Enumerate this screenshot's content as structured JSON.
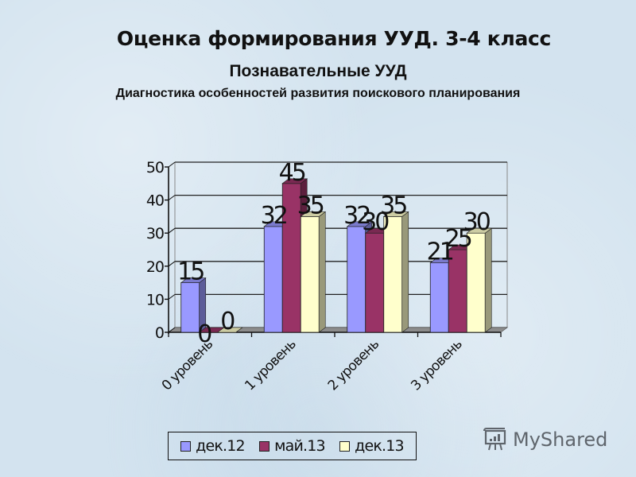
{
  "slide": {
    "title": "Оценка формирования УУД. 3-4 класс",
    "subtitle": "Познавательные УУД",
    "caption": "Диагностика особенностей развития поискового планирования"
  },
  "watermark": {
    "text": "MyShared",
    "icon": "presentation-board-icon"
  },
  "colors": {
    "background": "#d3e3ef",
    "series": [
      "#9999ff",
      "#993366",
      "#ffffcc"
    ]
  },
  "legend": {
    "items": [
      {
        "label": "дек.12",
        "color": "#9999ff"
      },
      {
        "label": "май.13",
        "color": "#993366"
      },
      {
        "label": "дек.13",
        "color": "#ffffcc"
      }
    ]
  },
  "chart_data": {
    "type": "bar",
    "style": "3d-clustered-column",
    "title": "Диагностика особенностей развития поискового планирования",
    "xlabel": "",
    "ylabel": "",
    "categories": [
      "0 уровень",
      "1 уровень",
      "2 уровень",
      "3 уровень"
    ],
    "series": [
      {
        "name": "дек.12",
        "values": [
          15,
          32,
          32,
          21
        ],
        "color": "#9999ff"
      },
      {
        "name": "май.13",
        "values": [
          0,
          45,
          30,
          25
        ],
        "color": "#993366"
      },
      {
        "name": "дек.13",
        "values": [
          0,
          35,
          35,
          30
        ],
        "color": "#ffffcc"
      }
    ],
    "ylim": [
      0,
      50
    ],
    "yticks": [
      0,
      10,
      20,
      30,
      40,
      50
    ],
    "grid": true,
    "data_labels": true,
    "legend_position": "bottom"
  }
}
